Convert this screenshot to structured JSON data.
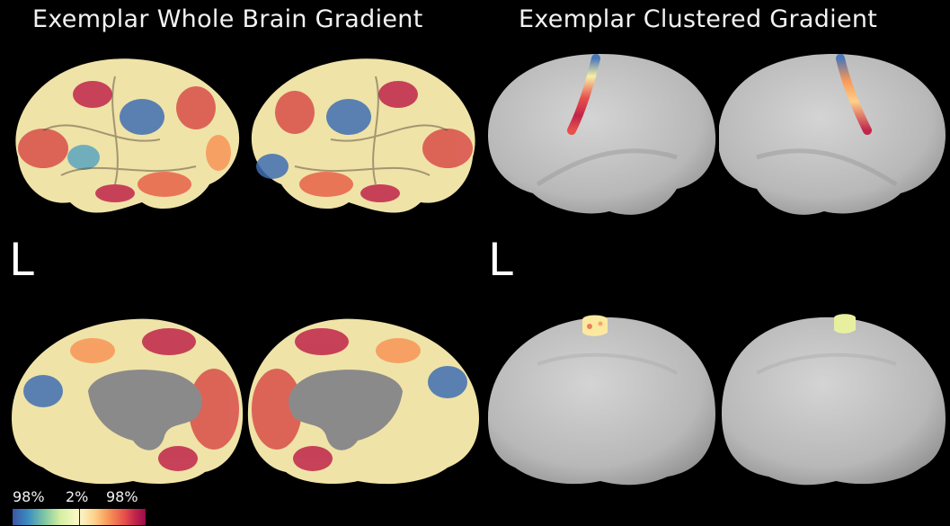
{
  "titles": {
    "left": "Exemplar Whole Brain Gradient",
    "right": "Exemplar Clustered Gradient"
  },
  "hemisphere_labels": {
    "left_panel": "L",
    "right_panel": "L"
  },
  "colorbar": {
    "label_low": "98%",
    "label_mid": "2%",
    "label_high": "98%",
    "colors": [
      "#3b56a8",
      "#7ec7a4",
      "#f9f7c4",
      "#f89658",
      "#9b0a4d"
    ]
  },
  "colors": {
    "background": "#000000",
    "inflated_surface": "#bdbdbd",
    "medial_wall": "#8a8a8a"
  }
}
